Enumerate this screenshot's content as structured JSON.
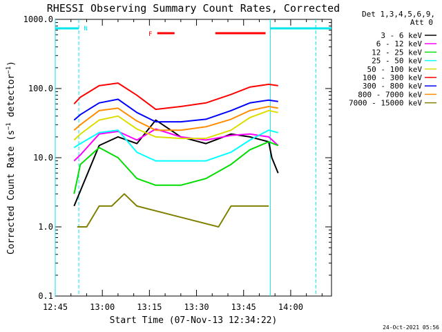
{
  "chart_data": {
    "type": "line",
    "title": "RHESSI Observing Summary Count Rates, Corrected",
    "xlabel": "Start Time (07-Nov-13 12:34:22)",
    "ylabel": "Corrected Count Rate (s⁻¹ detector⁻¹)",
    "ylabel_parts": [
      "Corrected Count Rate (s",
      "−1",
      " detector",
      "−1",
      ")"
    ],
    "y_scale": "log",
    "ylim": [
      0.1,
      1000
    ],
    "xlim_min": [
      10,
      98
    ],
    "x_ticks": [
      {
        "min": 10,
        "label": "12:45"
      },
      {
        "min": 25,
        "label": "13:00"
      },
      {
        "min": 40,
        "label": "13:15"
      },
      {
        "min": 55,
        "label": "13:30"
      },
      {
        "min": 70,
        "label": "13:45"
      },
      {
        "min": 85,
        "label": "14:00"
      }
    ],
    "y_ticks": [
      {
        "value": 0.1,
        "label": "0.1"
      },
      {
        "value": 1,
        "label": "1.0"
      },
      {
        "value": 10,
        "label": "10.0"
      },
      {
        "value": 100,
        "label": "100.0"
      },
      {
        "value": 1000,
        "label": "1000.0"
      }
    ],
    "legend": {
      "header": [
        "Det 1,3,4,5,6,9,",
        "Att 0"
      ],
      "placement": "right"
    },
    "series": [
      {
        "name": "3 - 6 keV",
        "color": "#000000",
        "x_min": [
          16,
          24,
          30,
          36,
          42,
          50,
          58,
          66,
          72,
          78,
          79,
          81
        ],
        "values": [
          2,
          15,
          20,
          16,
          35,
          20,
          16,
          22,
          20,
          17,
          10,
          6
        ]
      },
      {
        "name": "6 - 12 keV",
        "color": "#ff00ff",
        "x_min": [
          16,
          18,
          24,
          30,
          36,
          42,
          50,
          58,
          66,
          72,
          78,
          81
        ],
        "values": [
          9,
          11,
          22,
          24,
          18,
          26,
          20,
          18,
          21,
          22,
          20,
          15
        ]
      },
      {
        "name": "12 - 25 keV",
        "color": "#00dd00",
        "x_min": [
          16,
          18,
          24,
          30,
          36,
          42,
          50,
          58,
          66,
          72,
          78,
          81
        ],
        "values": [
          3,
          8,
          14,
          10,
          5,
          4,
          4,
          5,
          8,
          13,
          17,
          15
        ]
      },
      {
        "name": "25 - 50 keV",
        "color": "#00ffff",
        "x_min": [
          16,
          18,
          24,
          30,
          36,
          42,
          50,
          58,
          66,
          72,
          78,
          81
        ],
        "values": [
          14,
          16,
          23,
          25,
          12,
          9,
          9,
          9,
          12,
          18,
          25,
          23
        ]
      },
      {
        "name": "50 - 100 keV",
        "color": "#dddd00",
        "x_min": [
          16,
          18,
          24,
          30,
          36,
          42,
          50,
          58,
          66,
          72,
          78,
          81
        ],
        "values": [
          18,
          22,
          35,
          40,
          26,
          20,
          19,
          19,
          25,
          38,
          48,
          45
        ]
      },
      {
        "name": "100 - 300 keV",
        "color": "#ff0000",
        "x_min": [
          16,
          18,
          24,
          30,
          36,
          42,
          50,
          58,
          66,
          72,
          78,
          81
        ],
        "values": [
          60,
          75,
          110,
          120,
          80,
          50,
          55,
          62,
          82,
          105,
          115,
          110
        ]
      },
      {
        "name": "300 - 800 keV",
        "color": "#0000ff",
        "x_min": [
          16,
          18,
          24,
          30,
          36,
          42,
          50,
          58,
          66,
          72,
          78,
          81
        ],
        "values": [
          35,
          42,
          62,
          70,
          45,
          33,
          33,
          36,
          48,
          62,
          68,
          65
        ]
      },
      {
        "name": "800 - 7000 keV",
        "color": "#ff8c00",
        "x_min": [
          16,
          18,
          24,
          30,
          36,
          42,
          50,
          58,
          66,
          72,
          78,
          81
        ],
        "values": [
          25,
          30,
          48,
          52,
          34,
          25,
          25,
          28,
          36,
          48,
          55,
          52
        ]
      },
      {
        "name": "7000 - 15000 keV",
        "color": "#808000",
        "x_min": [
          17,
          20,
          24,
          28,
          32,
          36,
          62,
          66,
          70,
          74,
          78
        ],
        "values": [
          1,
          1,
          2,
          2,
          3,
          2,
          1,
          2,
          2,
          2,
          2
        ]
      }
    ],
    "flags": {
      "saa_label": "N",
      "flare_label": "F",
      "night_segments_min": [
        [
          10,
          17.5
        ],
        [
          78.5,
          98
        ]
      ],
      "flare_segments_min": [
        [
          42.5,
          48
        ],
        [
          61,
          77
        ]
      ],
      "dashed_lines_min": [
        17.5,
        93
      ],
      "solid_lines_min": [
        10,
        78.5
      ]
    },
    "timestamp": "24-Oct-2021 05:56"
  }
}
